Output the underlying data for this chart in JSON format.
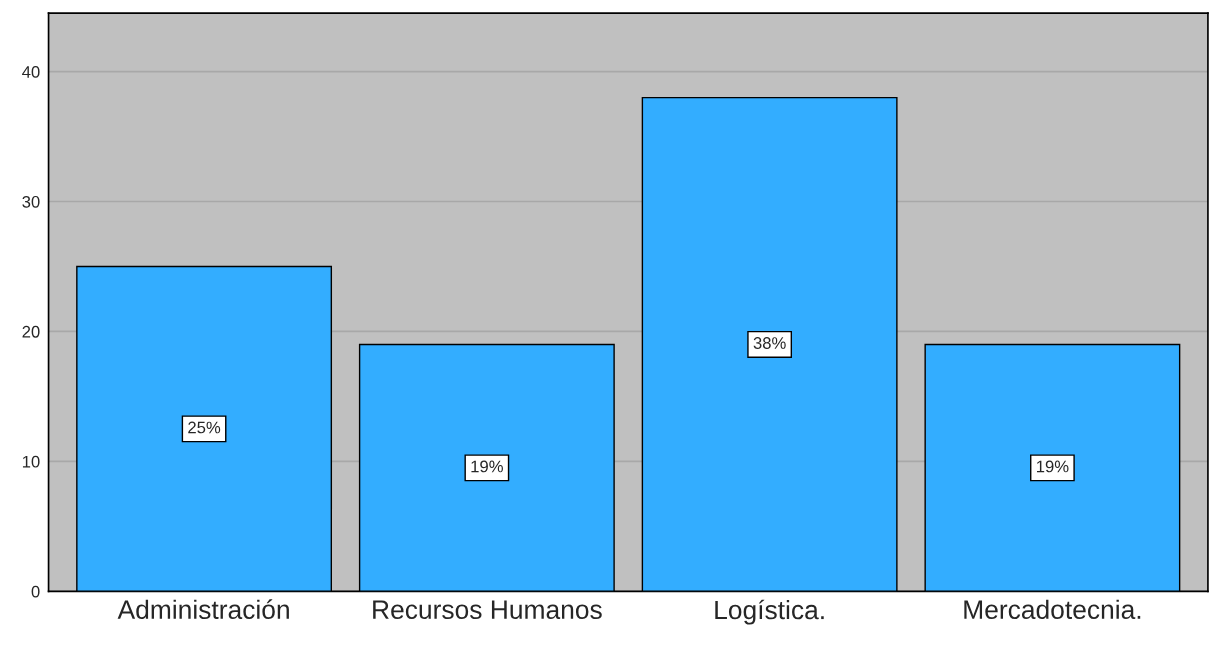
{
  "chart_data": {
    "type": "bar",
    "categories": [
      "Administración",
      "Recursos Humanos",
      "Logística.",
      "Mercadotecnia."
    ],
    "values": [
      25,
      19,
      38,
      19
    ],
    "value_labels": [
      "25%",
      "19%",
      "38%",
      "19%"
    ],
    "color": "#33adff",
    "ylim": [
      0,
      44.5
    ],
    "yticks": [
      0,
      10,
      20,
      30,
      40
    ],
    "grid": "y"
  }
}
